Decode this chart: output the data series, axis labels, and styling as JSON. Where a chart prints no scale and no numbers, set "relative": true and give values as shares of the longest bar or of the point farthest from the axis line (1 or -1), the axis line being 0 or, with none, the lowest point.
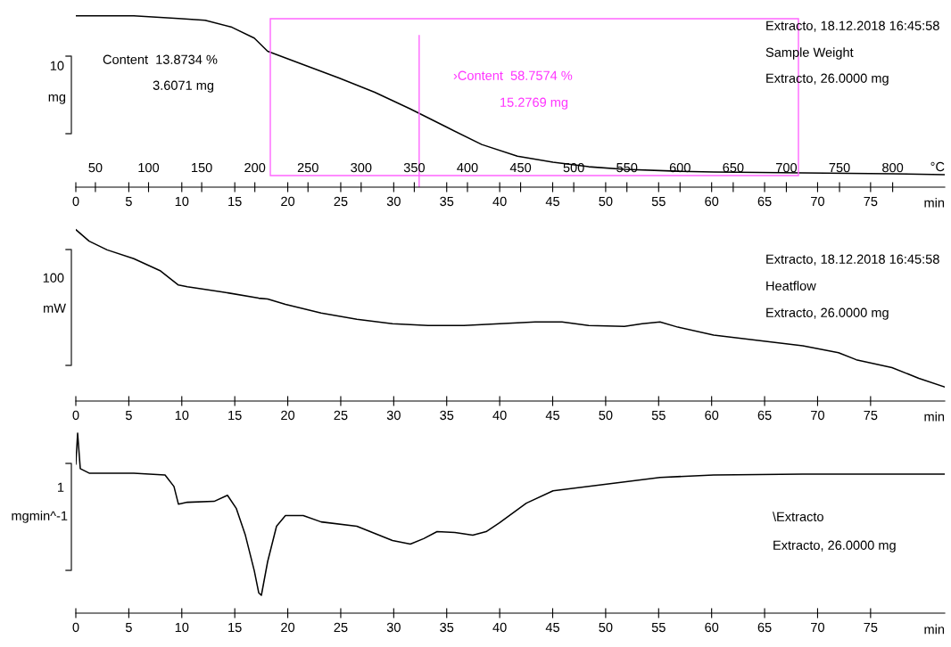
{
  "chart_data": [
    {
      "type": "line",
      "relative": true,
      "xlabel": "min",
      "x2label": "°C",
      "xlim": [
        0,
        82
      ],
      "xticks": [
        0,
        5,
        10,
        15,
        20,
        25,
        30,
        35,
        40,
        45,
        50,
        55,
        60,
        65,
        70,
        75
      ],
      "x2lim": [
        31.6,
        849
      ],
      "x2ticks": [
        50,
        100,
        150,
        200,
        250,
        300,
        350,
        400,
        450,
        500,
        550,
        600,
        650,
        700,
        750,
        800
      ],
      "series": [
        {
          "color": "#000000",
          "x": [
            0,
            5.47,
            9.68,
            12.2,
            14.73,
            16.84,
            18.1,
            21.46,
            24.83,
            28.2,
            31.57,
            34.93,
            38.3,
            41.67,
            45.03,
            48.4,
            51.77,
            56.82,
            60.19,
            68.6,
            77.02,
            82
          ],
          "values": [
            1.0,
            1.0,
            0.984,
            0.974,
            0.933,
            0.87,
            0.793,
            0.715,
            0.637,
            0.554,
            0.456,
            0.352,
            0.249,
            0.181,
            0.145,
            0.119,
            0.104,
            0.093,
            0.088,
            0.083,
            0.078,
            0.073
          ]
        }
      ],
      "ref_lines": [
        {
          "axis": "x",
          "value": 32.4,
          "color": "#ff66ff"
        }
      ],
      "annotations": [
        "Content  13.8734 %",
        "3.6071 mg",
        "›Content  58.7574 %",
        "15.2769 mg",
        "Extracto, 18.12.2018 16:45:58",
        "Sample Weight",
        "Extracto, 26.0000 mg",
        "10",
        "mg"
      ]
    },
    {
      "type": "line",
      "relative": true,
      "xlabel": "min",
      "xlim": [
        0,
        82
      ],
      "xticks": [
        0,
        5,
        10,
        15,
        20,
        25,
        30,
        35,
        40,
        45,
        50,
        55,
        60,
        65,
        70,
        75
      ],
      "series": [
        {
          "color": "#000000",
          "x": [
            0,
            1.26,
            2.95,
            5.47,
            8.0,
            9.68,
            10.52,
            13.89,
            17.26,
            18.1,
            19.78,
            23.15,
            26.52,
            29.88,
            33.25,
            36.62,
            39.98,
            43.35,
            45.88,
            48.4,
            51.77,
            53.45,
            55.13,
            56.82,
            60.19,
            64.39,
            68.6,
            71.97,
            73.65,
            77.02,
            79.55,
            82
          ],
          "values": [
            1.0,
            0.933,
            0.882,
            0.831,
            0.759,
            0.677,
            0.667,
            0.636,
            0.6,
            0.595,
            0.564,
            0.513,
            0.477,
            0.451,
            0.441,
            0.441,
            0.451,
            0.462,
            0.462,
            0.441,
            0.436,
            0.451,
            0.462,
            0.431,
            0.385,
            0.354,
            0.323,
            0.282,
            0.241,
            0.195,
            0.133,
            0.082
          ]
        }
      ],
      "annotations": [
        "Extracto, 18.12.2018 16:45:58",
        "Heatflow",
        "Extracto, 26.0000 mg",
        "100",
        "mW"
      ]
    },
    {
      "type": "line",
      "relative": true,
      "xlabel": "min",
      "xlim": [
        0,
        82
      ],
      "xticks": [
        0,
        5,
        10,
        15,
        20,
        25,
        30,
        35,
        40,
        45,
        50,
        55,
        60,
        65,
        70,
        75
      ],
      "series": [
        {
          "color": "#000000",
          "x": [
            0,
            0.17,
            0.42,
            1.26,
            5.47,
            8.42,
            9.26,
            9.68,
            10.52,
            13.05,
            14.31,
            15.15,
            16.0,
            16.84,
            17.26,
            17.51,
            18.1,
            18.94,
            19.78,
            21.46,
            23.15,
            26.52,
            28.2,
            29.88,
            31.57,
            32.83,
            34.09,
            35.77,
            37.46,
            38.72,
            39.98,
            42.51,
            45.03,
            48.4,
            51.77,
            55.13,
            60.19,
            68.6,
            82
          ],
          "values": [
            0.828,
            1.0,
            0.803,
            0.778,
            0.778,
            0.768,
            0.704,
            0.606,
            0.616,
            0.621,
            0.655,
            0.581,
            0.433,
            0.236,
            0.113,
            0.099,
            0.286,
            0.483,
            0.542,
            0.542,
            0.507,
            0.483,
            0.443,
            0.404,
            0.384,
            0.414,
            0.453,
            0.448,
            0.433,
            0.453,
            0.502,
            0.611,
            0.68,
            0.704,
            0.729,
            0.754,
            0.768,
            0.773,
            0.773
          ]
        }
      ],
      "annotations": [
        "\\Extracto",
        "Extracto, 26.0000 mg",
        "1",
        "mgmin^-1"
      ]
    }
  ]
}
